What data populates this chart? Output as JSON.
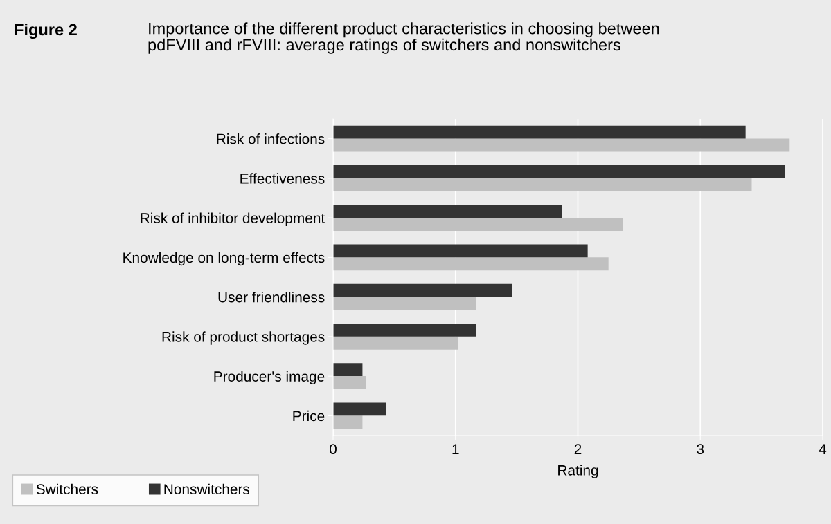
{
  "chart_data": {
    "type": "bar",
    "orientation": "horizontal",
    "title": "Figure 2",
    "subtitle": "Importance of the different product characteristics in choosing between\npdFVIII and rFVIII: average ratings of switchers and nonswitchers",
    "xlabel": "Rating",
    "categories": [
      "Risk of infections",
      "Effectiveness",
      "Risk of inhibitor development",
      "Knowledge on long-term effects",
      "User friendliness",
      "Risk of product shortages",
      "Producer's image",
      "Price"
    ],
    "series": [
      {
        "name": "Switchers",
        "color": "#c0c0c0",
        "values": [
          3.73,
          3.42,
          2.37,
          2.25,
          1.17,
          1.02,
          0.27,
          0.24
        ]
      },
      {
        "name": "Nonswitchers",
        "color": "#333333",
        "values": [
          3.37,
          3.69,
          1.87,
          2.08,
          1.46,
          1.17,
          0.24,
          0.43
        ]
      }
    ],
    "xlim": [
      0,
      4
    ],
    "xticks": [
      0,
      1,
      2,
      3,
      4
    ],
    "grid": "x",
    "legend": "bottom left"
  }
}
